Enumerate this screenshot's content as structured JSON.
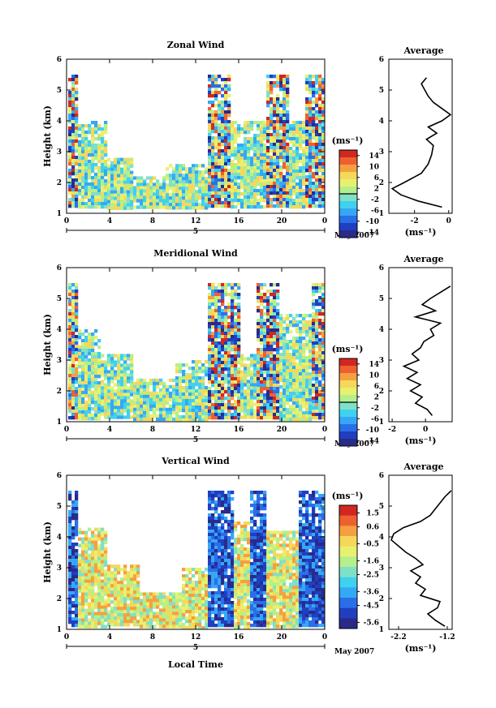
{
  "figure": {
    "date_label": "May 2007",
    "xlabel_bottom": "Local Time",
    "colorbar_unit": "(ms⁻¹)",
    "avg_title": "Average",
    "avg_unit": "(ms⁻¹)",
    "day_marker": "5",
    "colormap": [
      "#2a2a8a",
      "#1f3fc0",
      "#2a6fe8",
      "#35a8f5",
      "#40d0f0",
      "#7fe0c8",
      "#b5ef8a",
      "#e8f070",
      "#f5d85a",
      "#f5a040",
      "#ef6030",
      "#d02820"
    ]
  },
  "chart_data": [
    {
      "type": "heatmap",
      "title": "Zonal Wind",
      "ylabel": "Height (km)",
      "xlim": [
        0,
        24
      ],
      "ylim": [
        1,
        6
      ],
      "xticks": [
        "0",
        "4",
        "8",
        "12",
        "16",
        "20",
        "0"
      ],
      "yticks": [
        "1",
        "2",
        "3",
        "4",
        "5",
        "6"
      ],
      "colorbar": {
        "range": [
          -16,
          16
        ],
        "ticks": [
          "14",
          "10",
          "6",
          "2",
          "-2",
          "-6",
          "-10",
          "-14"
        ],
        "zero_line": 0
      },
      "activity": [
        {
          "t0": 0.0,
          "t1": 1.0,
          "top": 5.5,
          "bottom": 1.2
        },
        {
          "t0": 1.0,
          "t1": 3.5,
          "top": 4.0,
          "bottom": 1.2
        },
        {
          "t0": 3.5,
          "t1": 6.0,
          "top": 2.8,
          "bottom": 1.2
        },
        {
          "t0": 6.0,
          "t1": 9.0,
          "top": 2.2,
          "bottom": 1.2
        },
        {
          "t0": 9.0,
          "t1": 13.0,
          "top": 2.6,
          "bottom": 1.2
        },
        {
          "t0": 13.0,
          "t1": 15.0,
          "top": 5.5,
          "bottom": 1.2
        },
        {
          "t0": 15.0,
          "t1": 18.5,
          "top": 4.0,
          "bottom": 1.2
        },
        {
          "t0": 18.5,
          "t1": 20.5,
          "top": 5.5,
          "bottom": 1.2
        },
        {
          "t0": 20.5,
          "t1": 22.0,
          "top": 4.0,
          "bottom": 1.2
        },
        {
          "t0": 22.0,
          "t1": 24.0,
          "top": 5.5,
          "bottom": 1.2
        }
      ],
      "average": {
        "xlim": [
          -3.5,
          0.2
        ],
        "xticks": [
          -2,
          0
        ],
        "xticklabels": [
          "-2",
          "0"
        ],
        "profile": [
          [
            1.2,
            -0.4
          ],
          [
            1.4,
            -1.8
          ],
          [
            1.6,
            -2.8
          ],
          [
            1.8,
            -3.3
          ],
          [
            2.0,
            -2.6
          ],
          [
            2.3,
            -1.6
          ],
          [
            2.6,
            -1.2
          ],
          [
            2.9,
            -1.0
          ],
          [
            3.2,
            -0.9
          ],
          [
            3.4,
            -1.3
          ],
          [
            3.6,
            -0.7
          ],
          [
            3.8,
            -1.2
          ],
          [
            4.0,
            -0.4
          ],
          [
            4.2,
            0.1
          ],
          [
            4.4,
            -0.4
          ],
          [
            4.6,
            -0.9
          ],
          [
            4.8,
            -1.2
          ],
          [
            5.0,
            -1.4
          ],
          [
            5.2,
            -1.6
          ],
          [
            5.4,
            -1.3
          ]
        ]
      }
    },
    {
      "type": "heatmap",
      "title": "Meridional Wind",
      "ylabel": "Height (km)",
      "xlim": [
        0,
        24
      ],
      "ylim": [
        1,
        6
      ],
      "xticks": [
        "0",
        "4",
        "8",
        "12",
        "16",
        "20",
        "0"
      ],
      "yticks": [
        "1",
        "2",
        "3",
        "4",
        "5",
        "6"
      ],
      "colorbar": {
        "range": [
          -16,
          16
        ],
        "ticks": [
          "14",
          "10",
          "6",
          "2",
          "-2",
          "-6",
          "-10",
          "-14"
        ],
        "zero_line": 0
      },
      "activity": [
        {
          "t0": 0.0,
          "t1": 1.0,
          "top": 5.5,
          "bottom": 1.1
        },
        {
          "t0": 1.0,
          "t1": 3.0,
          "top": 4.0,
          "bottom": 1.1
        },
        {
          "t0": 3.0,
          "t1": 6.0,
          "top": 3.2,
          "bottom": 1.1
        },
        {
          "t0": 6.0,
          "t1": 10.0,
          "top": 2.4,
          "bottom": 1.1
        },
        {
          "t0": 10.0,
          "t1": 13.0,
          "top": 3.0,
          "bottom": 1.1
        },
        {
          "t0": 13.0,
          "t1": 16.0,
          "top": 5.5,
          "bottom": 1.1
        },
        {
          "t0": 16.0,
          "t1": 17.5,
          "top": 3.2,
          "bottom": 1.1
        },
        {
          "t0": 17.5,
          "t1": 19.5,
          "top": 5.5,
          "bottom": 1.1
        },
        {
          "t0": 19.5,
          "t1": 22.5,
          "top": 4.5,
          "bottom": 1.1
        },
        {
          "t0": 22.5,
          "t1": 24.0,
          "top": 5.5,
          "bottom": 1.1
        }
      ],
      "average": {
        "xlim": [
          -2.2,
          1.6
        ],
        "xticks": [
          -2,
          0
        ],
        "xticklabels": [
          "-2",
          "0"
        ],
        "profile": [
          [
            1.2,
            0.4
          ],
          [
            1.4,
            0.1
          ],
          [
            1.6,
            -0.6
          ],
          [
            1.8,
            -0.2
          ],
          [
            2.0,
            -0.9
          ],
          [
            2.2,
            -0.3
          ],
          [
            2.4,
            -1.1
          ],
          [
            2.6,
            -0.5
          ],
          [
            2.8,
            -1.3
          ],
          [
            3.0,
            -0.4
          ],
          [
            3.2,
            -0.8
          ],
          [
            3.4,
            -0.3
          ],
          [
            3.6,
            -0.1
          ],
          [
            3.8,
            0.5
          ],
          [
            4.0,
            0.3
          ],
          [
            4.2,
            0.9
          ],
          [
            4.4,
            -0.6
          ],
          [
            4.6,
            0.6
          ],
          [
            4.8,
            -0.2
          ],
          [
            5.0,
            0.3
          ],
          [
            5.2,
            0.9
          ],
          [
            5.4,
            1.5
          ]
        ]
      }
    },
    {
      "type": "heatmap",
      "title": "Vertical Wind",
      "ylabel": "Height (km)",
      "xlim": [
        0,
        24
      ],
      "ylim": [
        1,
        6
      ],
      "xticks": [
        "0",
        "4",
        "8",
        "12",
        "16",
        "20",
        "0"
      ],
      "yticks": [
        "1",
        "2",
        "3",
        "4",
        "5",
        "6"
      ],
      "colorbar": {
        "range": [
          -6.0,
          2.0
        ],
        "ticks": [
          "1.5",
          "0.6",
          "-0.5",
          "-1.6",
          "-2.5",
          "-3.6",
          "-4.5",
          "-5.6"
        ],
        "zero_line": null
      },
      "activity": [
        {
          "t0": 0.0,
          "t1": 1.0,
          "top": 5.5,
          "bottom": 1.1
        },
        {
          "t0": 1.0,
          "t1": 3.5,
          "top": 4.3,
          "bottom": 1.1
        },
        {
          "t0": 3.5,
          "t1": 6.5,
          "top": 3.1,
          "bottom": 1.1
        },
        {
          "t0": 6.5,
          "t1": 10.5,
          "top": 2.2,
          "bottom": 1.1
        },
        {
          "t0": 10.5,
          "t1": 13.0,
          "top": 3.0,
          "bottom": 1.1
        },
        {
          "t0": 13.0,
          "t1": 15.5,
          "top": 5.5,
          "bottom": 1.1
        },
        {
          "t0": 15.5,
          "t1": 17.0,
          "top": 4.5,
          "bottom": 1.1
        },
        {
          "t0": 17.0,
          "t1": 18.5,
          "top": 5.5,
          "bottom": 1.1
        },
        {
          "t0": 18.5,
          "t1": 21.5,
          "top": 4.2,
          "bottom": 1.1
        },
        {
          "t0": 21.5,
          "t1": 24.0,
          "top": 5.5,
          "bottom": 1.1
        }
      ],
      "average": {
        "xlim": [
          -2.4,
          -1.1
        ],
        "xticks": [
          -2.2,
          -1.2
        ],
        "xticklabels": [
          "-2.2",
          "-1.2"
        ],
        "profile": [
          [
            1.1,
            -1.25
          ],
          [
            1.3,
            -1.45
          ],
          [
            1.5,
            -1.6
          ],
          [
            1.7,
            -1.4
          ],
          [
            1.9,
            -1.35
          ],
          [
            2.1,
            -1.75
          ],
          [
            2.3,
            -1.65
          ],
          [
            2.5,
            -1.85
          ],
          [
            2.7,
            -1.75
          ],
          [
            2.9,
            -1.95
          ],
          [
            3.1,
            -1.7
          ],
          [
            3.3,
            -1.85
          ],
          [
            3.5,
            -2.05
          ],
          [
            3.7,
            -2.2
          ],
          [
            3.9,
            -2.35
          ],
          [
            4.1,
            -2.3
          ],
          [
            4.3,
            -2.1
          ],
          [
            4.5,
            -1.75
          ],
          [
            4.7,
            -1.55
          ],
          [
            4.9,
            -1.45
          ],
          [
            5.1,
            -1.35
          ],
          [
            5.3,
            -1.25
          ],
          [
            5.5,
            -1.12
          ]
        ]
      }
    }
  ]
}
